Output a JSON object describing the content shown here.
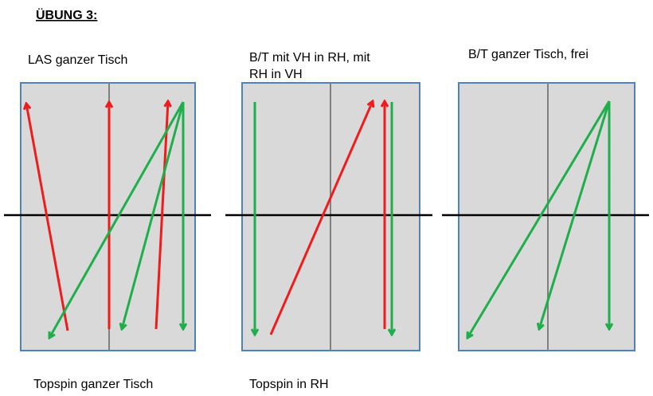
{
  "title": "ÜBUNG 3:",
  "panels": [
    {
      "title": [
        "LAS ganzer Tisch"
      ],
      "caption": "Topspin ganzer Tisch"
    },
    {
      "title": [
        "B/T mit VH in RH, mit",
        "RH in VH"
      ],
      "caption": "Topspin in RH"
    },
    {
      "title": [
        "B/T ganzer Tisch, frei"
      ]
    }
  ]
}
